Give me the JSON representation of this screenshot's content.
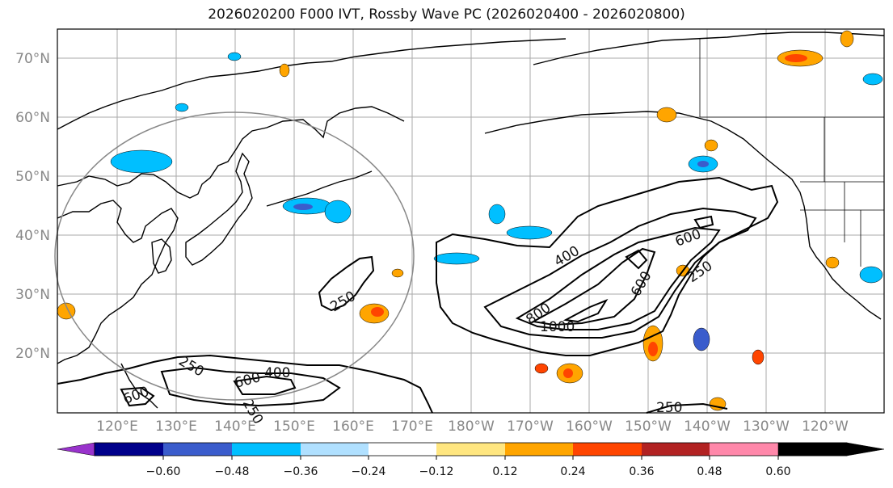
{
  "title": "2026020200 F000 IVT, Rossby Wave PC (2026020400 - 2026020800)",
  "map": {
    "lat_labels": [
      "70°N",
      "60°N",
      "50°N",
      "40°N",
      "30°N",
      "20°N"
    ],
    "lon_labels": [
      "120°E",
      "130°E",
      "140°E",
      "150°E",
      "160°E",
      "170°E",
      "180°W",
      "170°W",
      "160°W",
      "150°W",
      "140°W",
      "130°W",
      "120°W"
    ],
    "contour_labels": [
      {
        "text": "250",
        "id": "w1"
      },
      {
        "text": "250",
        "id": "w2"
      },
      {
        "text": "600",
        "id": "w3"
      },
      {
        "text": "400",
        "id": "w4"
      },
      {
        "text": "600",
        "id": "w5"
      },
      {
        "text": "250",
        "id": "w6"
      },
      {
        "text": "400",
        "id": "e1"
      },
      {
        "text": "600",
        "id": "e2"
      },
      {
        "text": "600",
        "id": "e3"
      },
      {
        "text": "250",
        "id": "e4"
      },
      {
        "text": "800",
        "id": "e5"
      },
      {
        "text": "1000",
        "id": "e6"
      },
      {
        "text": "250",
        "id": "e7"
      }
    ]
  },
  "colorbar": {
    "ticks": [
      "−0.60",
      "−0.48",
      "−0.36",
      "−0.24",
      "−0.12",
      "0.12",
      "0.24",
      "0.36",
      "0.48",
      "0.60"
    ],
    "colors": [
      "#9933cc",
      "#00008b",
      "#3a5ccc",
      "#00bfff",
      "#b0e0ff",
      "#ffffff",
      "#ffe680",
      "#ffa500",
      "#ff4500",
      "#b22222",
      "#ff88aa"
    ]
  }
}
